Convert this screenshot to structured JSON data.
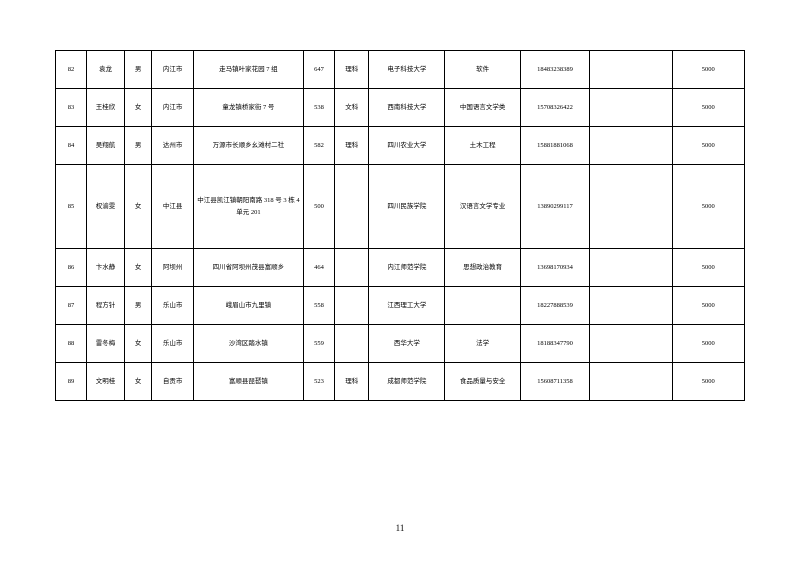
{
  "pageNumber": "11",
  "rows": [
    {
      "idx": "82",
      "name": "袁龙",
      "gender": "男",
      "city": "内江市",
      "address": "走马镇叶家花园 7 组",
      "score": "647",
      "subject": "理科",
      "university": "电子科技大学",
      "major": "软件",
      "phone": "18483238389",
      "empty": "",
      "amount": "5000"
    },
    {
      "idx": "83",
      "name": "王桂欣",
      "gender": "女",
      "city": "内江市",
      "address": "童龙镇桥家街 7 号",
      "score": "538",
      "subject": "文科",
      "university": "西南科技大学",
      "major": "中国语言文学类",
      "phone": "15708326422",
      "empty": "",
      "amount": "5000"
    },
    {
      "idx": "84",
      "name": "吴翔航",
      "gender": "男",
      "city": "达州市",
      "address": "万源市长顺乡幺滩村二社",
      "score": "582",
      "subject": "理科",
      "university": "四川农业大学",
      "major": "土木工程",
      "phone": "15881881068",
      "empty": "",
      "amount": "5000"
    },
    {
      "idx": "85",
      "name": "权渝雯",
      "gender": "女",
      "city": "中江县",
      "address": "中江县凯江镇朝阳南路 318 号 3 栋 4 单元 201",
      "score": "500",
      "subject": "",
      "university": "四川民族学院",
      "major": "汉语言文学专业",
      "phone": "13890299117",
      "empty": "",
      "amount": "5000",
      "tall": true
    },
    {
      "idx": "86",
      "name": "卞水静",
      "gender": "女",
      "city": "阿坝州",
      "address": "四川省阿坝州茂县富顺乡",
      "score": "464",
      "subject": "",
      "university": "内江师范学院",
      "major": "思想政治教育",
      "phone": "13698170934",
      "empty": "",
      "amount": "5000"
    },
    {
      "idx": "87",
      "name": "程方针",
      "gender": "男",
      "city": "乐山市",
      "address": "峨眉山市九里镇",
      "score": "558",
      "subject": "",
      "university": "江西理工大学",
      "major": "",
      "phone": "18227888539",
      "empty": "",
      "amount": "5000"
    },
    {
      "idx": "88",
      "name": "雷冬梅",
      "gender": "女",
      "city": "乐山市",
      "address": "沙湾区踏水镇",
      "score": "559",
      "subject": "",
      "university": "西华大学",
      "major": "法学",
      "phone": "18188347790",
      "empty": "",
      "amount": "5000"
    },
    {
      "idx": "89",
      "name": "文明桂",
      "gender": "女",
      "city": "自贡市",
      "address": "富顺县琵琶镇",
      "score": "523",
      "subject": "理科",
      "university": "成都师范学院",
      "major": "食品质量与安全",
      "phone": "15608711358",
      "empty": "",
      "amount": "5000"
    }
  ]
}
